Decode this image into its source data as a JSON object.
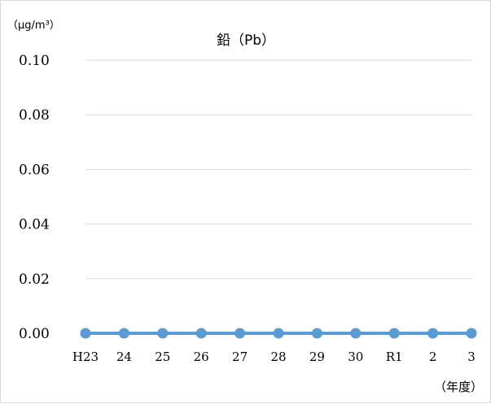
{
  "chart_data": {
    "type": "line",
    "title": "鉛（Pb）",
    "ylabel": "（μg/m³）",
    "xlabel": "（年度）",
    "categories": [
      "H23",
      "24",
      "25",
      "26",
      "27",
      "28",
      "29",
      "30",
      "R1",
      "2",
      "3"
    ],
    "y_ticks": [
      "0.00",
      "0.02",
      "0.04",
      "0.06",
      "0.08",
      "0.10"
    ],
    "ylim": [
      0,
      0.1
    ],
    "grid": true,
    "legend": "none",
    "series": [
      {
        "values": [
          0,
          0,
          0,
          0,
          0,
          0,
          0,
          0,
          0,
          0,
          0
        ],
        "color": "#5b9bd5"
      }
    ]
  }
}
